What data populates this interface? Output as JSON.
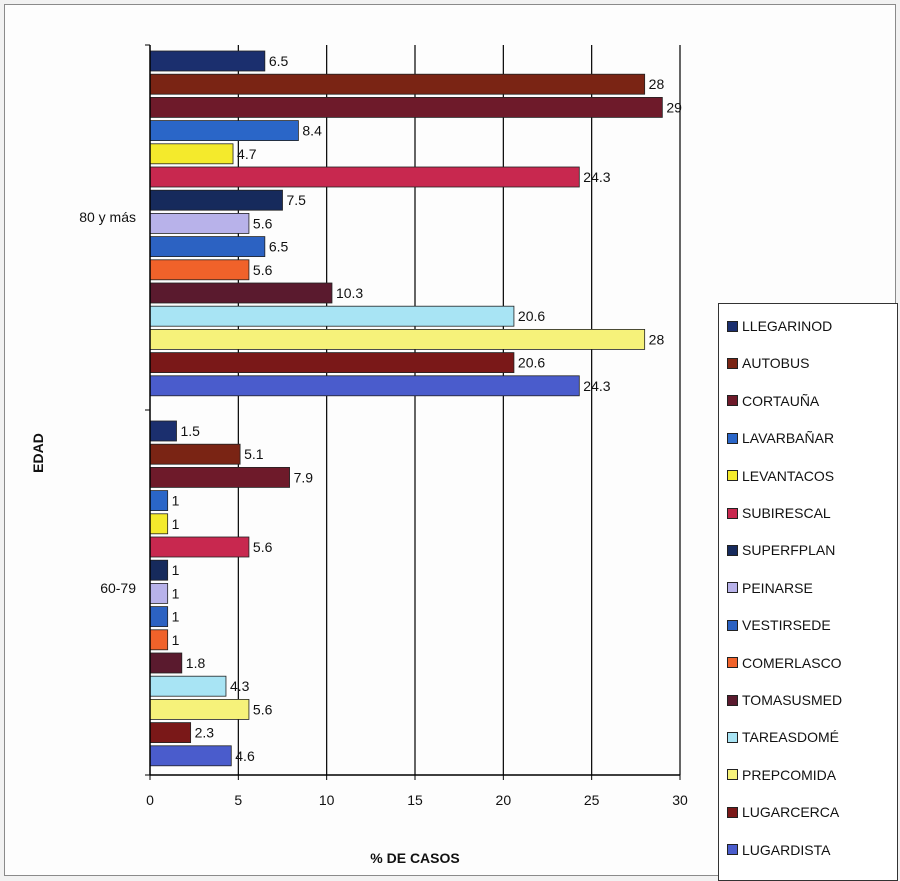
{
  "chart_data": {
    "type": "bar",
    "orientation": "horizontal",
    "xlabel": "% DE CASOS",
    "ylabel": "EDAD",
    "xlim": [
      0,
      30
    ],
    "xticks": [
      0,
      5,
      10,
      15,
      20,
      25,
      30
    ],
    "grid": true,
    "legend_position": "right",
    "groups": [
      "80 y más",
      "60-79"
    ],
    "series": [
      {
        "name": "LLEGARINOD",
        "color": "#1b2f6e",
        "values": [
          6.5,
          1.5
        ]
      },
      {
        "name": "AUTOBUS",
        "color": "#7a2414",
        "values": [
          28,
          5.1
        ]
      },
      {
        "name": "CORTAUÑA",
        "color": "#6e1a2a",
        "values": [
          29,
          7.9
        ]
      },
      {
        "name": "LAVARBAÑAR",
        "color": "#2a66c8",
        "values": [
          8.4,
          1
        ]
      },
      {
        "name": "LEVANTACOS",
        "color": "#f4ea2c",
        "values": [
          4.7,
          1
        ]
      },
      {
        "name": "SUBIRESCAL",
        "color": "#c8284f",
        "values": [
          24.3,
          5.6
        ]
      },
      {
        "name": "SUPERFPLAN",
        "color": "#162a5c",
        "values": [
          7.5,
          1
        ]
      },
      {
        "name": "PEINARSE",
        "color": "#b8b2ea",
        "values": [
          5.6,
          1
        ]
      },
      {
        "name": "VESTIRSEDE",
        "color": "#2c62c2",
        "values": [
          6.5,
          1
        ]
      },
      {
        "name": "COMERLASCO",
        "color": "#f0622a",
        "values": [
          5.6,
          1
        ]
      },
      {
        "name": "TOMASUSMED",
        "color": "#5a1a2e",
        "values": [
          10.3,
          1.8
        ]
      },
      {
        "name": "TAREASDOMÉ",
        "color": "#a8e4f4",
        "values": [
          20.6,
          4.3
        ]
      },
      {
        "name": "PREPCOMIDA",
        "color": "#f6f27a",
        "values": [
          28,
          5.6
        ]
      },
      {
        "name": "LUGARCERCA",
        "color": "#7a1818",
        "values": [
          20.6,
          2.3
        ]
      },
      {
        "name": "LUGARDISTA",
        "color": "#4a5ccc",
        "values": [
          24.3,
          4.6
        ]
      }
    ],
    "value_labels": [
      [
        "6.5",
        "1.5"
      ],
      [
        "28",
        "5.1"
      ],
      [
        "29",
        "7.9"
      ],
      [
        "8.4",
        "1"
      ],
      [
        "4.7",
        "1"
      ],
      [
        "24.3",
        "5.6"
      ],
      [
        "7.5",
        "1"
      ],
      [
        "5.6",
        "1"
      ],
      [
        "6.5",
        "1"
      ],
      [
        "5.6",
        "1"
      ],
      [
        "10.3",
        "1.8"
      ],
      [
        "20.6",
        "4.3"
      ],
      [
        "28",
        "5.6"
      ],
      [
        "20.6",
        "2.3"
      ],
      [
        "24.3",
        "4.6"
      ]
    ]
  }
}
